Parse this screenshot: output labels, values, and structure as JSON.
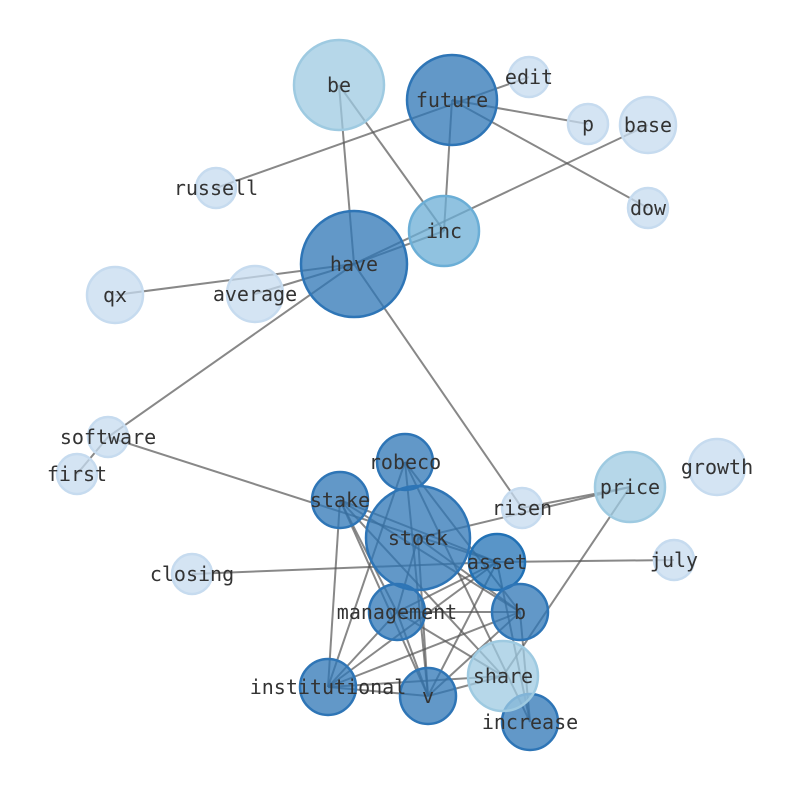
{
  "nodes": [
    {
      "id": "be",
      "level": 2
    },
    {
      "id": "future",
      "level": 3
    },
    {
      "id": "edit",
      "level": 0
    },
    {
      "id": "p",
      "level": 0
    },
    {
      "id": "base",
      "level": 0
    },
    {
      "id": "dow",
      "level": 0
    },
    {
      "id": "russell",
      "level": 0
    },
    {
      "id": "inc",
      "level": 1
    },
    {
      "id": "have",
      "level": 3
    },
    {
      "id": "qx",
      "level": 0
    },
    {
      "id": "average",
      "level": 0
    },
    {
      "id": "software",
      "level": 0
    },
    {
      "id": "first",
      "level": 0
    },
    {
      "id": "stake",
      "level": 3
    },
    {
      "id": "robeco",
      "level": 3
    },
    {
      "id": "stock",
      "level": 3
    },
    {
      "id": "asset",
      "level": 4
    },
    {
      "id": "risen",
      "level": 0
    },
    {
      "id": "price",
      "level": 2
    },
    {
      "id": "growth",
      "level": 0
    },
    {
      "id": "july",
      "level": 0
    },
    {
      "id": "closing",
      "level": 0
    },
    {
      "id": "management",
      "level": 3
    },
    {
      "id": "b",
      "level": 3
    },
    {
      "id": "institutional",
      "level": 3
    },
    {
      "id": "v",
      "level": 3
    },
    {
      "id": "increase",
      "level": 3
    },
    {
      "id": "share",
      "level": 2
    }
  ],
  "edges": [
    [
      "be",
      "have"
    ],
    [
      "be",
      "inc"
    ],
    [
      "russell",
      "edit"
    ],
    [
      "future",
      "p"
    ],
    [
      "future",
      "dow"
    ],
    [
      "future",
      "inc"
    ],
    [
      "have",
      "base"
    ],
    [
      "have",
      "qx"
    ],
    [
      "have",
      "average"
    ],
    [
      "have",
      "inc"
    ],
    [
      "have",
      "software"
    ],
    [
      "have",
      "risen"
    ],
    [
      "software",
      "first"
    ],
    [
      "software",
      "asset"
    ],
    [
      "closing",
      "asset"
    ],
    [
      "risen",
      "price"
    ],
    [
      "price",
      "stock"
    ],
    [
      "asset",
      "july"
    ],
    [
      "price",
      "share"
    ],
    [
      "stake",
      "asset"
    ],
    [
      "stake",
      "b"
    ],
    [
      "stake",
      "v"
    ],
    [
      "stake",
      "institutional"
    ],
    [
      "stake",
      "share"
    ],
    [
      "robeco",
      "v"
    ],
    [
      "robeco",
      "institutional"
    ],
    [
      "robeco",
      "b"
    ],
    [
      "robeco",
      "increase"
    ],
    [
      "stock",
      "management"
    ],
    [
      "stock",
      "v"
    ],
    [
      "stock",
      "b"
    ],
    [
      "asset",
      "institutional"
    ],
    [
      "asset",
      "v"
    ],
    [
      "asset",
      "increase"
    ],
    [
      "asset",
      "management"
    ],
    [
      "management",
      "b"
    ],
    [
      "management",
      "institutional"
    ],
    [
      "management",
      "v"
    ],
    [
      "management",
      "share"
    ],
    [
      "b",
      "institutional"
    ],
    [
      "b",
      "v"
    ],
    [
      "b",
      "increase"
    ],
    [
      "institutional",
      "v"
    ],
    [
      "v",
      "share"
    ],
    [
      "institutional",
      "share"
    ],
    [
      "stake",
      "management"
    ]
  ],
  "colors": {
    "0": "#c6dbef",
    "1": "#6baed6",
    "2": "#9ecae1",
    "3": "#2e75b6",
    "4": "#2171b5",
    "edge": "#555555"
  }
}
